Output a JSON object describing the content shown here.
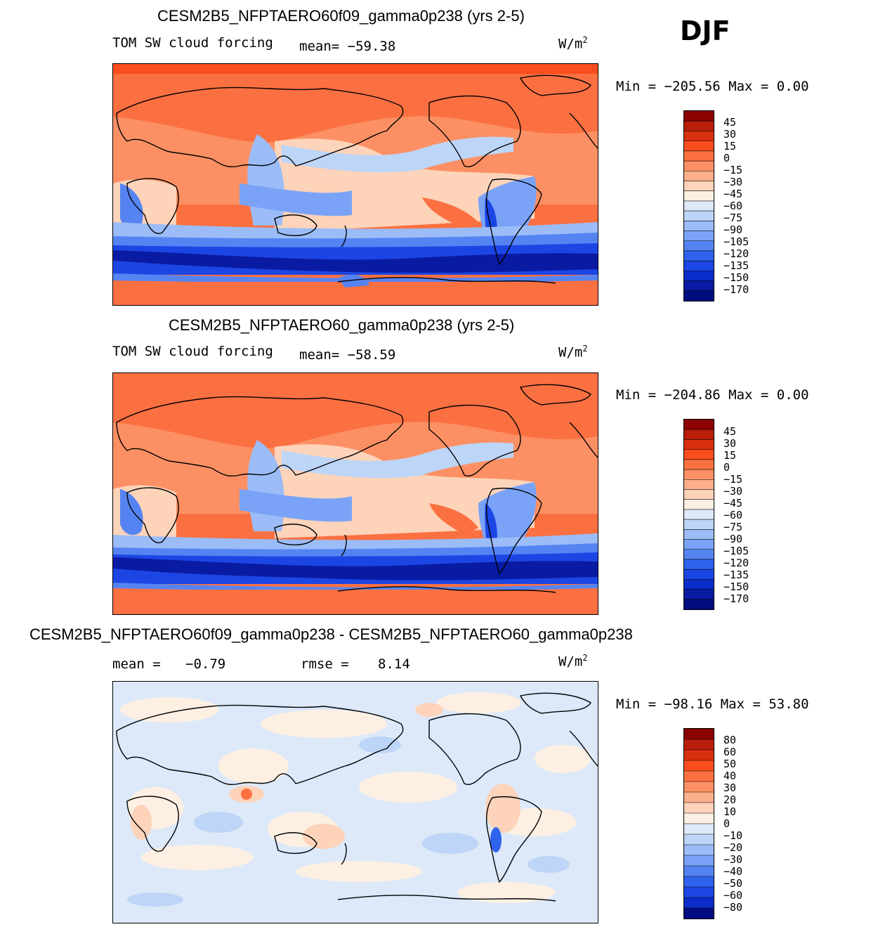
{
  "season": "DJF",
  "panels": [
    {
      "title": "CESM2B5_NFPTAERO60f09_gamma0p238 (yrs 2-5)",
      "field": "TOM SW cloud forcing",
      "stat": "mean=  −59.38",
      "units": "W/m",
      "units_exp": "2",
      "minmax": "Min  =  −205.56  Max  =     0.00",
      "colorbar_levels": [
        "45",
        "30",
        "15",
        "0",
        "−15",
        "−30",
        "−45",
        "−60",
        "−75",
        "−90",
        "−105",
        "−120",
        "−135",
        "−150",
        "−170"
      ]
    },
    {
      "title": "CESM2B5_NFPTAERO60_gamma0p238 (yrs 2-5)",
      "field": "TOM SW cloud forcing",
      "stat": "mean=  −58.59",
      "units": "W/m",
      "units_exp": "2",
      "minmax": "Min  =  −204.86  Max  =     0.00",
      "colorbar_levels": [
        "45",
        "30",
        "15",
        "0",
        "−15",
        "−30",
        "−45",
        "−60",
        "−75",
        "−90",
        "−105",
        "−120",
        "−135",
        "−150",
        "−170"
      ]
    },
    {
      "title": "CESM2B5_NFPTAERO60f09_gamma0p238 - CESM2B5_NFPTAERO60_gamma0p238",
      "mean_label": "mean  =",
      "mean_value": "−0.79",
      "rmse_label": "rmse  =",
      "rmse_value": "8.14",
      "units": "W/m",
      "units_exp": "2",
      "minmax": "Min  =  −98.16  Max  =   53.80",
      "colorbar_levels": [
        "80",
        "60",
        "50",
        "40",
        "30",
        "20",
        "10",
        "0",
        "−10",
        "−20",
        "−30",
        "−40",
        "−50",
        "−60",
        "−80"
      ]
    }
  ],
  "colors": {
    "abs_scale": [
      "#8b0000",
      "#b81e0a",
      "#d8300f",
      "#fb4d1d",
      "#fb7041",
      "#fc9064",
      "#fdae8a",
      "#fdd3b9",
      "#fdf0e3",
      "#dde9f8",
      "#bdd5f7",
      "#9bbcf7",
      "#7aa3f7",
      "#5584f2",
      "#2f63ee",
      "#1c46e4",
      "#0a2cc8",
      "#0a1ba3",
      "#000c80"
    ],
    "diff_scale": [
      "#8b0000",
      "#b81e0a",
      "#d8300f",
      "#fb4d1d",
      "#fb7041",
      "#fc9064",
      "#fdae8a",
      "#fdd3b9",
      "#fdf0e3",
      "#dde9f8",
      "#bdd5f7",
      "#9bbcf7",
      "#7aa3f7",
      "#5584f2",
      "#2f63ee",
      "#1c46e4",
      "#0a2cc8",
      "#000c80"
    ]
  }
}
